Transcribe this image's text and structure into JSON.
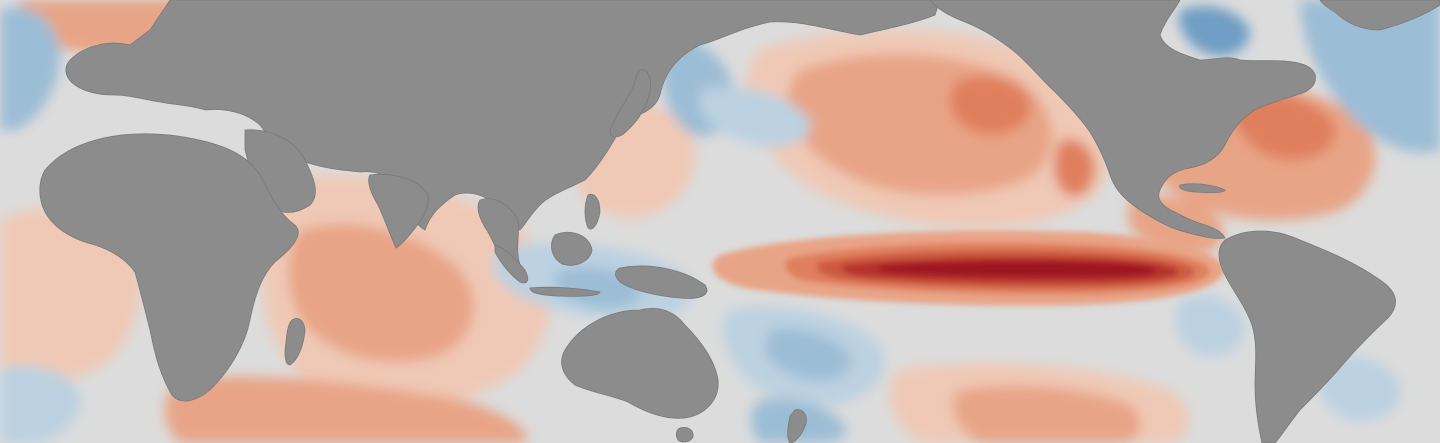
{
  "map": {
    "colors": {
      "ocean_neutral": "#dcdcdc",
      "land": "#8c8c8c",
      "land_edge": "#7a7a7a",
      "warm_1": "#efc9b6",
      "warm_2": "#e8a486",
      "warm_3": "#e07f5d",
      "warm_4": "#cc5a40",
      "warm_5": "#b5302c",
      "warm_6": "#9e1424",
      "cool_1": "#bcd1e1",
      "cool_2": "#9cbdd6",
      "cool_3": "#6f9ec4"
    }
  }
}
